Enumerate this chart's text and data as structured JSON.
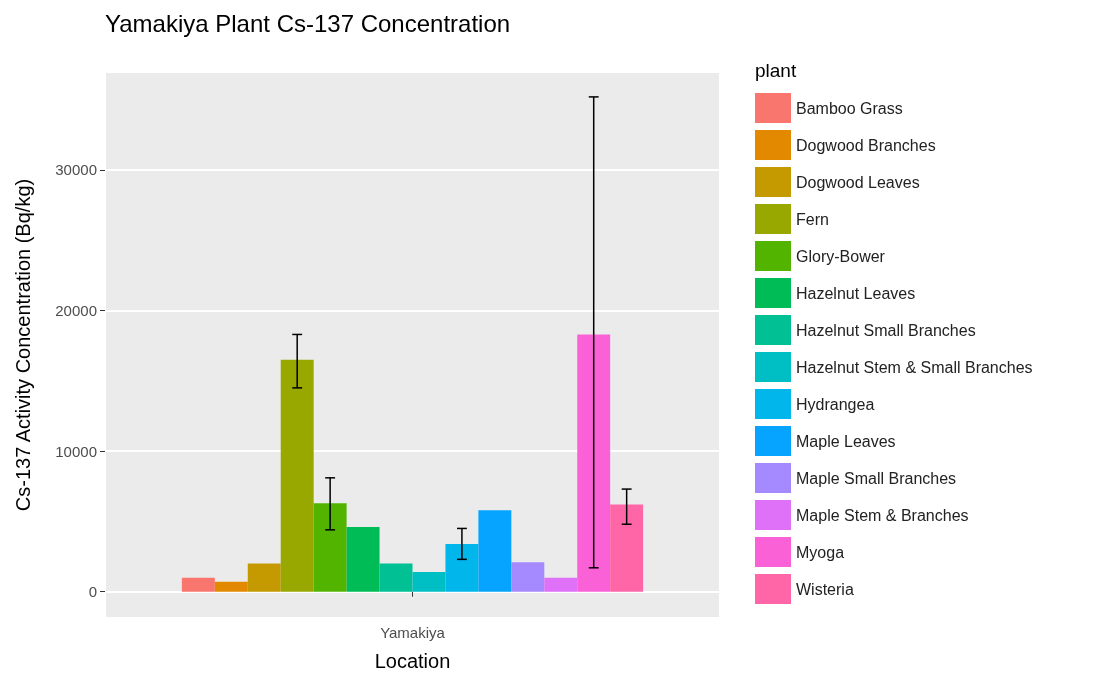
{
  "chart_data": {
    "type": "bar",
    "title": "Yamakiya Plant Cs-137 Concentration",
    "xlabel": "Location",
    "ylabel": "Cs-137 Activity Concentration (Bq/kg)",
    "legend_title": "plant",
    "categories": [
      "Yamakiya"
    ],
    "series": [
      {
        "name": "Bamboo Grass",
        "color": "#f8766d",
        "values": [
          1000
        ]
      },
      {
        "name": "Dogwood Branches",
        "color": "#e38900",
        "values": [
          700
        ]
      },
      {
        "name": "Dogwood Leaves",
        "color": "#c49a00",
        "values": [
          2000
        ]
      },
      {
        "name": "Fern",
        "color": "#99a800",
        "values": [
          16500
        ],
        "errors": [
          [
            14500,
            18300
          ]
        ]
      },
      {
        "name": "Glory-Bower",
        "color": "#53b400",
        "values": [
          6300
        ],
        "errors": [
          [
            4400,
            8100
          ]
        ]
      },
      {
        "name": "Hazelnut Leaves",
        "color": "#00bc56",
        "values": [
          4600
        ]
      },
      {
        "name": "Hazelnut Small Branches",
        "color": "#00c094",
        "values": [
          2000
        ]
      },
      {
        "name": "Hazelnut Stem & Small Branches",
        "color": "#00bfc4",
        "values": [
          1400
        ]
      },
      {
        "name": "Hydrangea",
        "color": "#00b6eb",
        "values": [
          3400
        ],
        "errors": [
          [
            2300,
            4500
          ]
        ]
      },
      {
        "name": "Maple Leaves",
        "color": "#06a4ff",
        "values": [
          5800
        ]
      },
      {
        "name": "Maple Small Branches",
        "color": "#a58aff",
        "values": [
          2100
        ]
      },
      {
        "name": "Maple Stem & Branches",
        "color": "#df70f8",
        "values": [
          1000
        ]
      },
      {
        "name": "Myoga",
        "color": "#fb61d7",
        "values": [
          18300
        ],
        "errors": [
          [
            1700,
            35200
          ]
        ]
      },
      {
        "name": "Wisteria",
        "color": "#ff66a8",
        "values": [
          6200
        ],
        "errors": [
          [
            4800,
            7300
          ]
        ]
      }
    ],
    "ylim": [
      -1800,
      36900
    ],
    "yticks": [
      0,
      10000,
      20000,
      30000
    ],
    "grid": true,
    "legend": "right"
  }
}
